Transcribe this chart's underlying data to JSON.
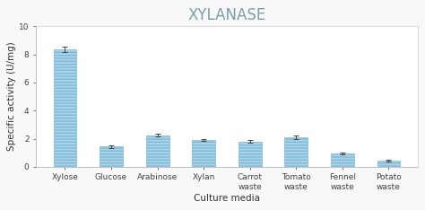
{
  "title": "XYLANASE",
  "xlabel": "Culture media",
  "ylabel": "Specific activity (U/mg)",
  "categories": [
    "Xylose",
    "Glucose",
    "Arabinose",
    "Xylan",
    "Carrot\nwaste",
    "Tomato\nwaste",
    "Fennel\nwaste",
    "Potato\nwaste"
  ],
  "values": [
    8.35,
    1.45,
    2.25,
    1.9,
    1.8,
    2.1,
    0.95,
    0.45
  ],
  "errors": [
    0.18,
    0.1,
    0.1,
    0.08,
    0.1,
    0.1,
    0.07,
    0.05
  ],
  "bar_color": "#a8d4e8",
  "bar_edgecolor": "#80b8d8",
  "hatch": "-----",
  "ylim": [
    0,
    10
  ],
  "yticks": [
    0,
    2,
    4,
    6,
    8,
    10
  ],
  "title_fontsize": 12,
  "title_color": "#7a9ea8",
  "axis_label_fontsize": 7.5,
  "tick_fontsize": 6.5,
  "plot_bg": "#ffffff",
  "figure_bg": "#f8f8f8",
  "bar_width": 0.5
}
